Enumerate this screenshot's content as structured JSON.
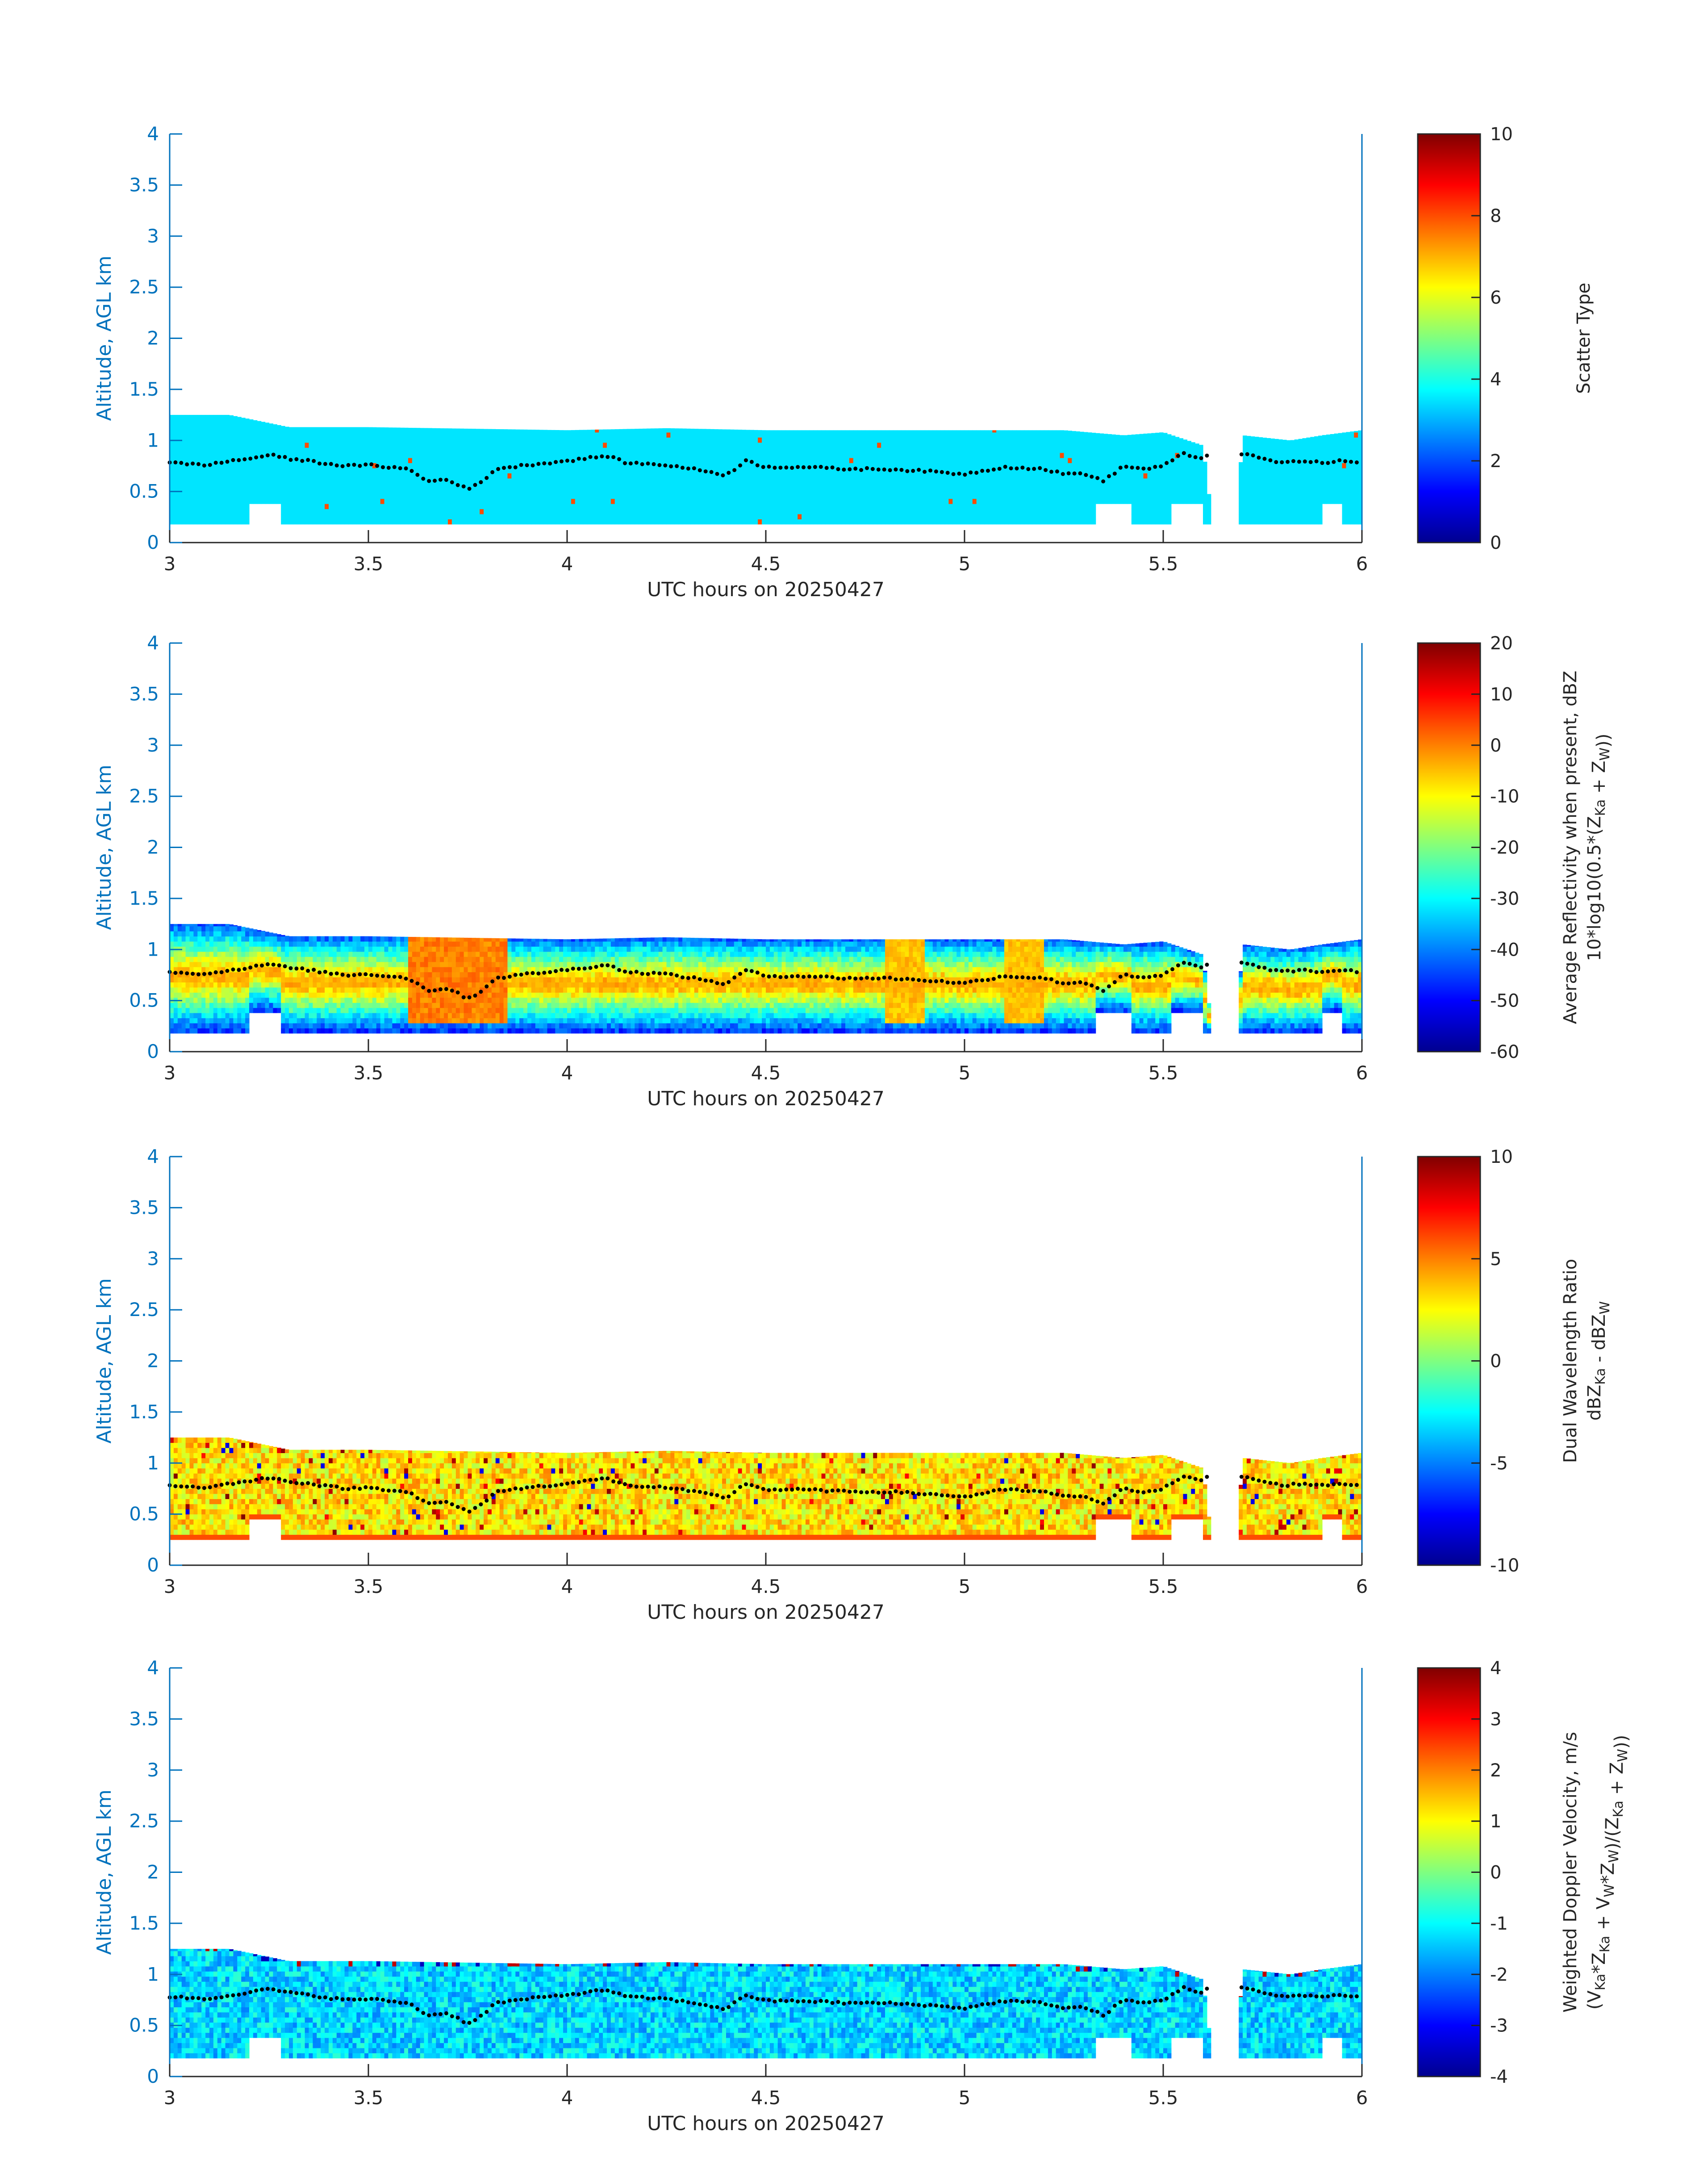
{
  "chart_data": [
    {
      "type": "heatmap",
      "title": "",
      "xlabel": "UTC hours on 20250427",
      "ylabel": "Altitude, AGL km",
      "xlim": [
        3,
        6
      ],
      "ylim": [
        0,
        4
      ],
      "xticks": [
        "3",
        "3.5",
        "4",
        "4.5",
        "5",
        "5.5",
        "6"
      ],
      "yticks": [
        "0",
        "0.5",
        "1",
        "1.5",
        "2",
        "2.5",
        "3",
        "3.5",
        "4"
      ],
      "colorbar": {
        "label": "Scatter Type",
        "label2": "",
        "range": [
          0,
          10
        ],
        "ticks": [
          "0",
          "2",
          "4",
          "6",
          "8",
          "10"
        ]
      },
      "colormap": "jet",
      "field": {
        "base_value": 3.5,
        "cloud_base_km": 0.18,
        "cloud_top_km": [
          [
            3.0,
            1.25
          ],
          [
            3.15,
            1.25
          ],
          [
            3.3,
            1.13
          ],
          [
            3.5,
            1.13
          ],
          [
            4.0,
            1.1
          ],
          [
            4.25,
            1.12
          ],
          [
            4.5,
            1.1
          ],
          [
            5.0,
            1.1
          ],
          [
            5.25,
            1.1
          ],
          [
            5.4,
            1.05
          ],
          [
            5.5,
            1.08
          ],
          [
            5.6,
            0.95
          ],
          [
            5.63,
            0.0
          ],
          [
            5.68,
            0.0
          ],
          [
            5.7,
            1.05
          ],
          [
            5.82,
            1.0
          ],
          [
            5.9,
            1.05
          ],
          [
            6.0,
            1.1
          ]
        ],
        "notes": [
          "3",
          "3.5",
          "4"
        ]
      }
    },
    {
      "type": "heatmap",
      "title": "",
      "xlabel": "UTC hours on 20250427",
      "ylabel": "Altitude, AGL km",
      "xlim": [
        3,
        6
      ],
      "ylim": [
        0,
        4
      ],
      "xticks": [
        "3",
        "3.5",
        "4",
        "4.5",
        "5",
        "5.5",
        "6"
      ],
      "yticks": [
        "0",
        "0.5",
        "1",
        "1.5",
        "2",
        "2.5",
        "3",
        "3.5",
        "4"
      ],
      "colorbar": {
        "label": "Average Reflectivity when present, dBZ",
        "label2": "10*log10(0.5*(Z",
        "label2_sub1": "Ka",
        "label2_mid": " + Z",
        "label2_sub2": "W",
        "label2_end": "))",
        "range": [
          -60,
          20
        ],
        "ticks": [
          "-60",
          "-50",
          "-40",
          "-30",
          "-20",
          "-10",
          "0",
          "10",
          "20"
        ]
      },
      "colormap": "jet",
      "field": {
        "center_value": -10,
        "edge_value": -45,
        "cloud_base_km": 0.18,
        "hot_spots_hours": [
          [
            3.6,
            3.85,
            0.0
          ],
          [
            4.8,
            4.9,
            -5.0
          ],
          [
            5.1,
            5.2,
            -5.0
          ]
        ]
      }
    },
    {
      "type": "heatmap",
      "title": "",
      "xlabel": "UTC hours on 20250427",
      "ylabel": "Altitude, AGL km",
      "xlim": [
        3,
        6
      ],
      "ylim": [
        0,
        4
      ],
      "xticks": [
        "3",
        "3.5",
        "4",
        "4.5",
        "5",
        "5.5",
        "6"
      ],
      "yticks": [
        "0",
        "0.5",
        "1",
        "1.5",
        "2",
        "2.5",
        "3",
        "3.5",
        "4"
      ],
      "colorbar": {
        "label": "Dual Wavelength Ratio",
        "label2": "dBZ",
        "label2_sub1": "Ka",
        "label2_mid": " - dBZ",
        "label2_sub2": "W",
        "label2_end": "",
        "range": [
          -10,
          10
        ],
        "ticks": [
          "-10",
          "-5",
          "0",
          "5",
          "10"
        ]
      },
      "colormap": "jet",
      "field": {
        "center_value": 3,
        "cloud_base_km": 0.25
      }
    },
    {
      "type": "heatmap",
      "title": "",
      "xlabel": "UTC hours on 20250427",
      "ylabel": "Altitude, AGL km",
      "xlim": [
        3,
        6
      ],
      "ylim": [
        0,
        4
      ],
      "xticks": [
        "3",
        "3.5",
        "4",
        "4.5",
        "5",
        "5.5",
        "6"
      ],
      "yticks": [
        "0",
        "0.5",
        "1",
        "1.5",
        "2",
        "2.5",
        "3",
        "3.5",
        "4"
      ],
      "colorbar": {
        "label": "Weighted Doppler Velocity, m/s",
        "label2": "(V",
        "label2_sub1": "Ka",
        "label2_mid": "*Z",
        "label2_sub2": "Ka",
        "label2_end": " + V",
        "label2_sub3": "W",
        "label2_tail": "*Z",
        "label2_sub4": "W",
        "label2_tail2": ")/(Z",
        "label2_sub5": "Ka",
        "label2_tail3": " + Z",
        "label2_sub6": "W",
        "label2_tail4": "))",
        "range": [
          -4,
          4
        ],
        "ticks": [
          "-4",
          "-3",
          "-2",
          "-1",
          "0",
          "1",
          "2",
          "3",
          "4"
        ]
      },
      "colormap": "jet",
      "field": {
        "center_value": -1.2,
        "cloud_base_km": 0.18
      }
    }
  ],
  "cloud_boundary_dots": {
    "description": "black dotted trace of cloud-top/boundary height (km) vs UTC hour, identical on all panels",
    "points": [
      [
        3.0,
        0.78
      ],
      [
        3.05,
        0.77
      ],
      [
        3.1,
        0.76
      ],
      [
        3.15,
        0.8
      ],
      [
        3.2,
        0.82
      ],
      [
        3.25,
        0.86
      ],
      [
        3.3,
        0.82
      ],
      [
        3.35,
        0.8
      ],
      [
        3.4,
        0.77
      ],
      [
        3.45,
        0.75
      ],
      [
        3.5,
        0.76
      ],
      [
        3.55,
        0.74
      ],
      [
        3.6,
        0.72
      ],
      [
        3.65,
        0.6
      ],
      [
        3.7,
        0.62
      ],
      [
        3.75,
        0.52
      ],
      [
        3.78,
        0.58
      ],
      [
        3.82,
        0.72
      ],
      [
        3.9,
        0.76
      ],
      [
        4.0,
        0.8
      ],
      [
        4.1,
        0.85
      ],
      [
        4.15,
        0.78
      ],
      [
        4.25,
        0.76
      ],
      [
        4.3,
        0.73
      ],
      [
        4.35,
        0.7
      ],
      [
        4.4,
        0.66
      ],
      [
        4.45,
        0.8
      ],
      [
        4.5,
        0.74
      ],
      [
        4.6,
        0.74
      ],
      [
        4.7,
        0.72
      ],
      [
        4.8,
        0.72
      ],
      [
        4.9,
        0.7
      ],
      [
        5.0,
        0.67
      ],
      [
        5.1,
        0.74
      ],
      [
        5.2,
        0.72
      ],
      [
        5.25,
        0.67
      ],
      [
        5.3,
        0.68
      ],
      [
        5.35,
        0.6
      ],
      [
        5.4,
        0.75
      ],
      [
        5.45,
        0.72
      ],
      [
        5.5,
        0.75
      ],
      [
        5.55,
        0.87
      ],
      [
        5.6,
        0.82
      ],
      [
        5.62,
        0.9
      ],
      [
        5.7,
        0.87
      ],
      [
        5.75,
        0.82
      ],
      [
        5.8,
        0.78
      ],
      [
        5.85,
        0.8
      ],
      [
        5.9,
        0.78
      ],
      [
        5.95,
        0.8
      ],
      [
        6.0,
        0.78
      ]
    ]
  }
}
